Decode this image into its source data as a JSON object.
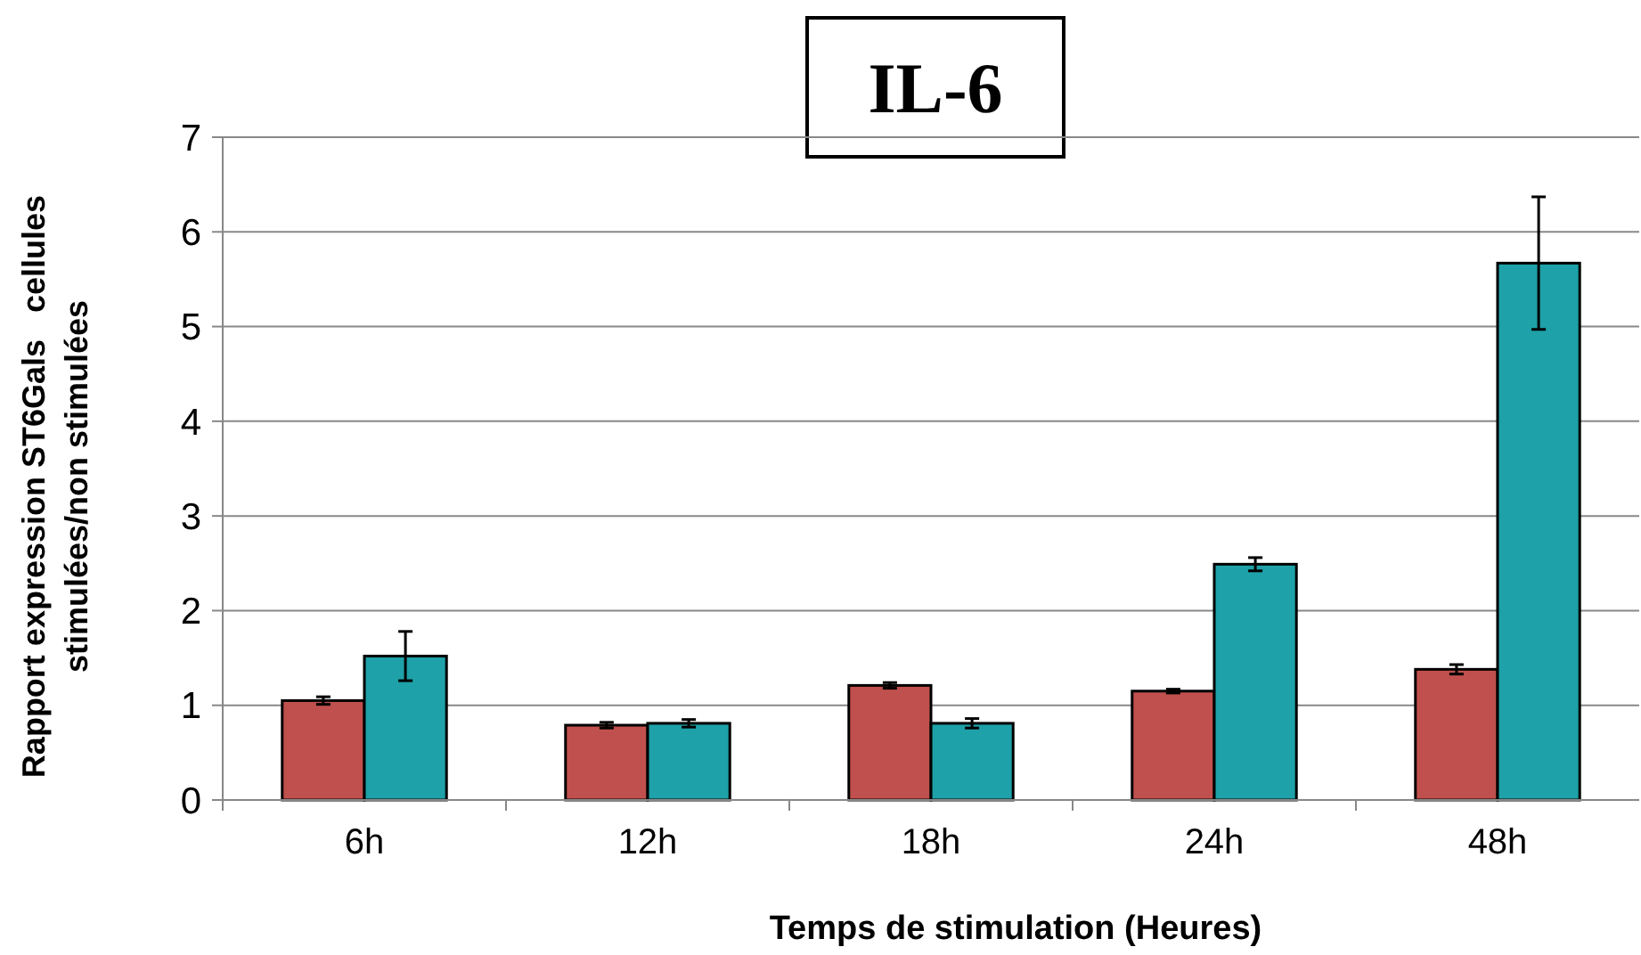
{
  "chart_data": {
    "type": "bar",
    "title": "IL-6",
    "xlabel": "Temps de stimulation (Heures)",
    "ylabel": "Rapport expression ST6Gals   cellules\nstimulées/non stimulées",
    "categories": [
      "6h",
      "12h",
      "18h",
      "24h",
      "48h"
    ],
    "series": [
      {
        "color": "#c0504d",
        "values": [
          1.05,
          0.79,
          1.21,
          1.15,
          1.38
        ],
        "errors": [
          0.04,
          0.03,
          0.03,
          0.02,
          0.05
        ]
      },
      {
        "color": "#1ea1a8",
        "values": [
          1.52,
          0.81,
          0.81,
          2.49,
          5.67
        ],
        "errors": [
          0.26,
          0.04,
          0.05,
          0.07,
          0.7
        ]
      }
    ],
    "ylim": [
      0,
      7
    ],
    "yticks": [
      0,
      1,
      2,
      3,
      4,
      5,
      6,
      7
    ],
    "grid": "y"
  }
}
